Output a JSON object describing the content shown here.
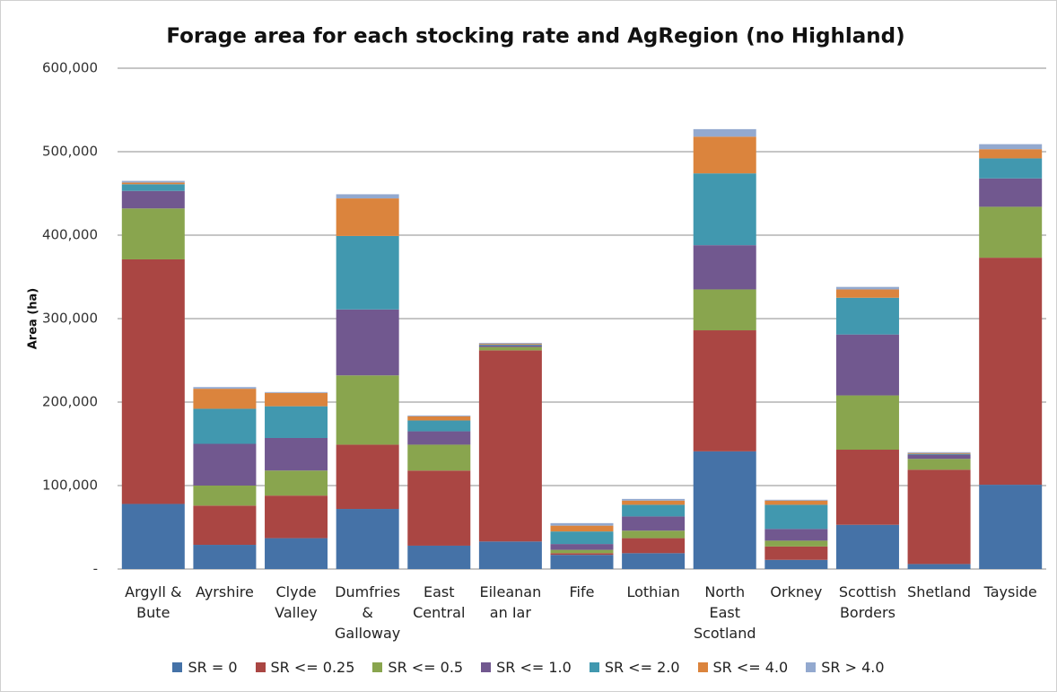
{
  "chart_data": {
    "type": "stacked_bar",
    "title": "Forage area for each stocking rate and AgRegion (no Highland)",
    "y_label": "Area (ha)",
    "categories": [
      "Argyll & Bute",
      "Ayrshire",
      "Clyde Valley",
      "Dumfries & Galloway",
      "East Central",
      "Eileanan an Iar",
      "Fife",
      "Lothian",
      "North East Scotland",
      "Orkney",
      "Scottish Borders",
      "Shetland",
      "Tayside"
    ],
    "series": [
      {
        "name": "SR = 0",
        "color": "#4572a7",
        "values": [
          78000,
          29000,
          37000,
          72000,
          28000,
          33000,
          17000,
          19000,
          141000,
          11000,
          53000,
          6000,
          101000
        ]
      },
      {
        "name": "SR <= 0.25",
        "color": "#aa4643",
        "values": [
          293000,
          47000,
          51000,
          77000,
          90000,
          229000,
          2000,
          18000,
          145000,
          16000,
          90000,
          113000,
          272000
        ]
      },
      {
        "name": "SR <= 0.5",
        "color": "#89a54e",
        "values": [
          61000,
          24000,
          30000,
          83000,
          31000,
          4000,
          4000,
          9000,
          49000,
          7000,
          65000,
          13000,
          61000
        ]
      },
      {
        "name": "SR <= 1.0",
        "color": "#71588f",
        "values": [
          21000,
          50000,
          39000,
          79000,
          16000,
          2000,
          7000,
          17000,
          53000,
          14000,
          73000,
          5000,
          34000
        ]
      },
      {
        "name": "SR <= 2.0",
        "color": "#4198af",
        "values": [
          8000,
          42000,
          38000,
          88000,
          13000,
          1000,
          15000,
          14000,
          86000,
          29000,
          44000,
          1000,
          24000
        ]
      },
      {
        "name": "SR <= 4.0",
        "color": "#db843d",
        "values": [
          2000,
          24000,
          16000,
          45000,
          5000,
          1000,
          7000,
          5000,
          44000,
          5000,
          10000,
          1000,
          11000
        ]
      },
      {
        "name": "SR > 4.0",
        "color": "#93a9cf",
        "values": [
          2000,
          2000,
          1000,
          5000,
          1000,
          1000,
          3000,
          2000,
          9000,
          1000,
          3000,
          1000,
          6000
        ]
      }
    ],
    "ylim": [
      0,
      600000
    ],
    "yticks": [
      {
        "value": 0,
        "label": "-"
      },
      {
        "value": 100000,
        "label": "100,000"
      },
      {
        "value": 200000,
        "label": "200,000"
      },
      {
        "value": 300000,
        "label": "300,000"
      },
      {
        "value": 400000,
        "label": "400,000"
      },
      {
        "value": 500000,
        "label": "500,000"
      },
      {
        "value": 600000,
        "label": "600,000"
      }
    ],
    "grid": true,
    "legend": "bottom"
  }
}
